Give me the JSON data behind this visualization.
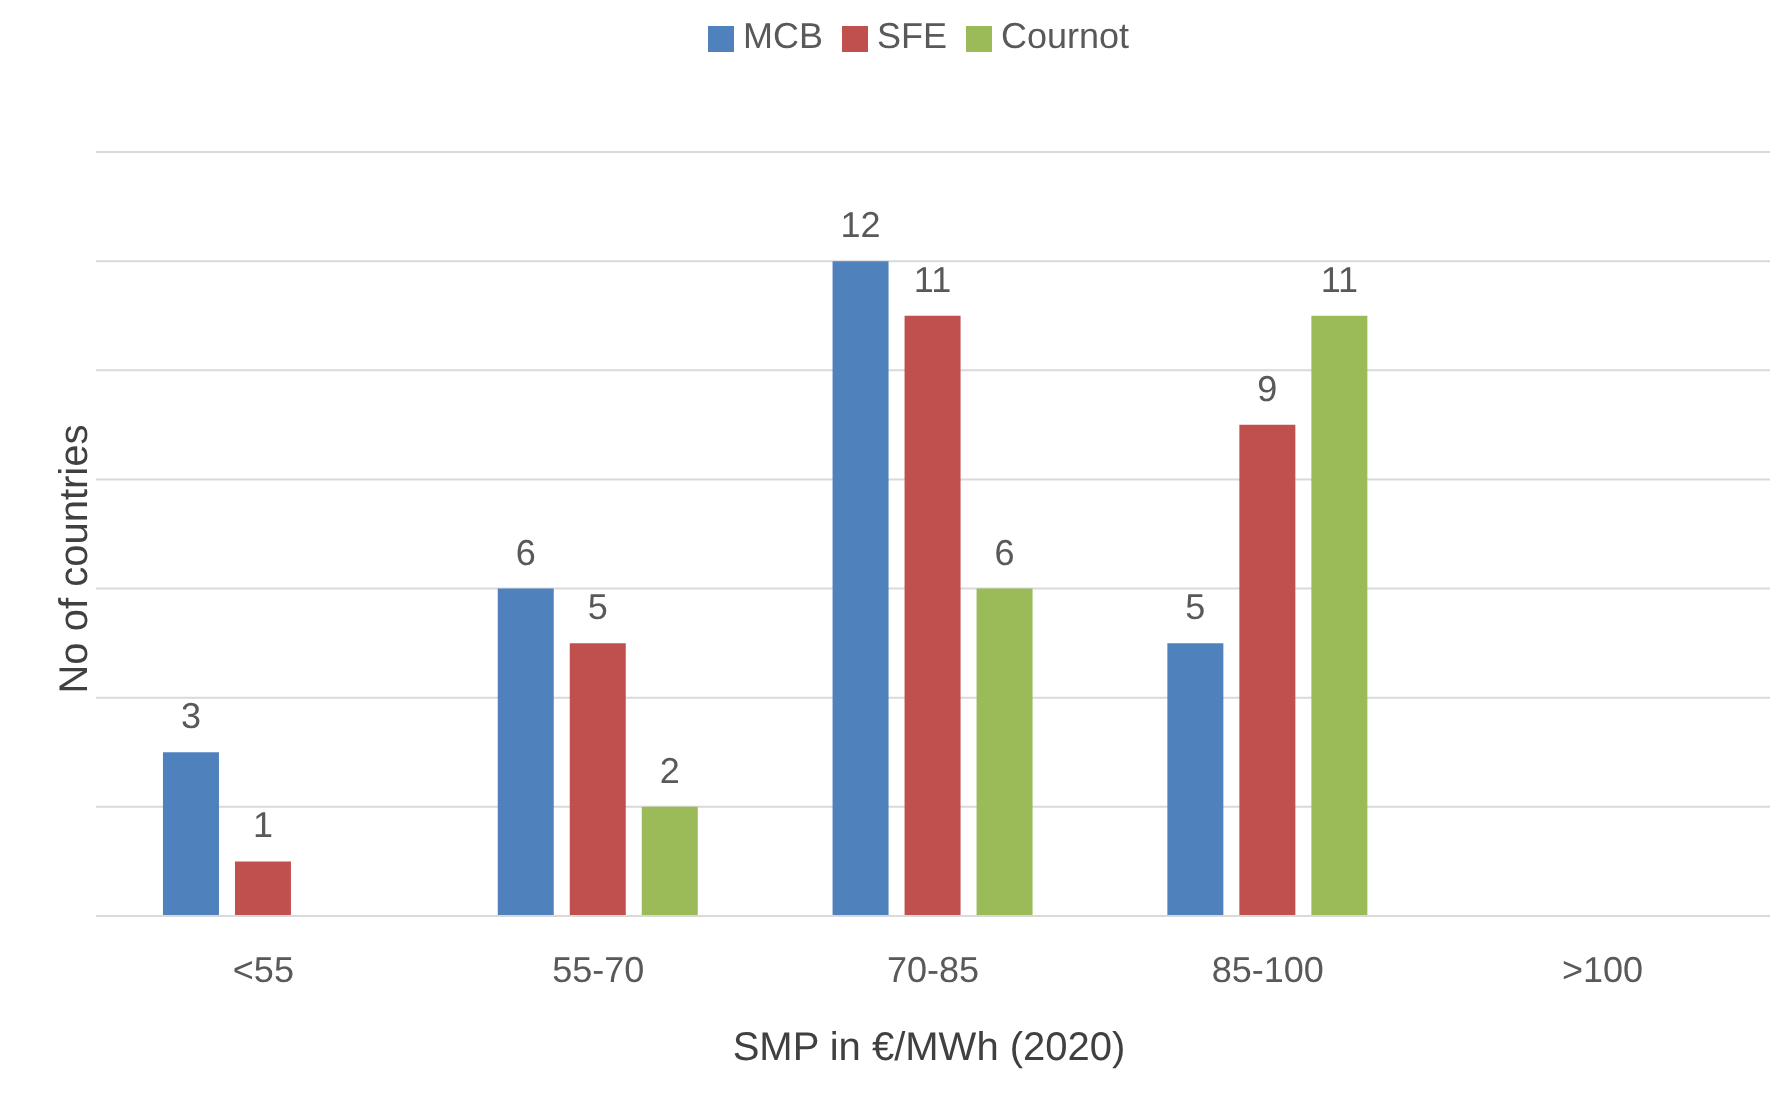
{
  "chart_data": {
    "type": "bar",
    "xlabel": "SMP in €/MWh (2020)",
    "ylabel": "No of countries",
    "categories": [
      "<55",
      "55-70",
      "70-85",
      "85-100",
      ">100"
    ],
    "series": [
      {
        "name": "MCB",
        "color": "#4f81bd",
        "values": [
          3,
          6,
          12,
          5,
          null
        ]
      },
      {
        "name": "SFE",
        "color": "#c0504d",
        "values": [
          1,
          5,
          11,
          9,
          null
        ]
      },
      {
        "name": "Cournot",
        "color": "#9bbb59",
        "values": [
          null,
          2,
          6,
          11,
          null
        ]
      }
    ],
    "ylim": [
      0,
      14
    ],
    "tick_labels": "x",
    "grid": "y",
    "legend": "top",
    "data_labels": true
  }
}
